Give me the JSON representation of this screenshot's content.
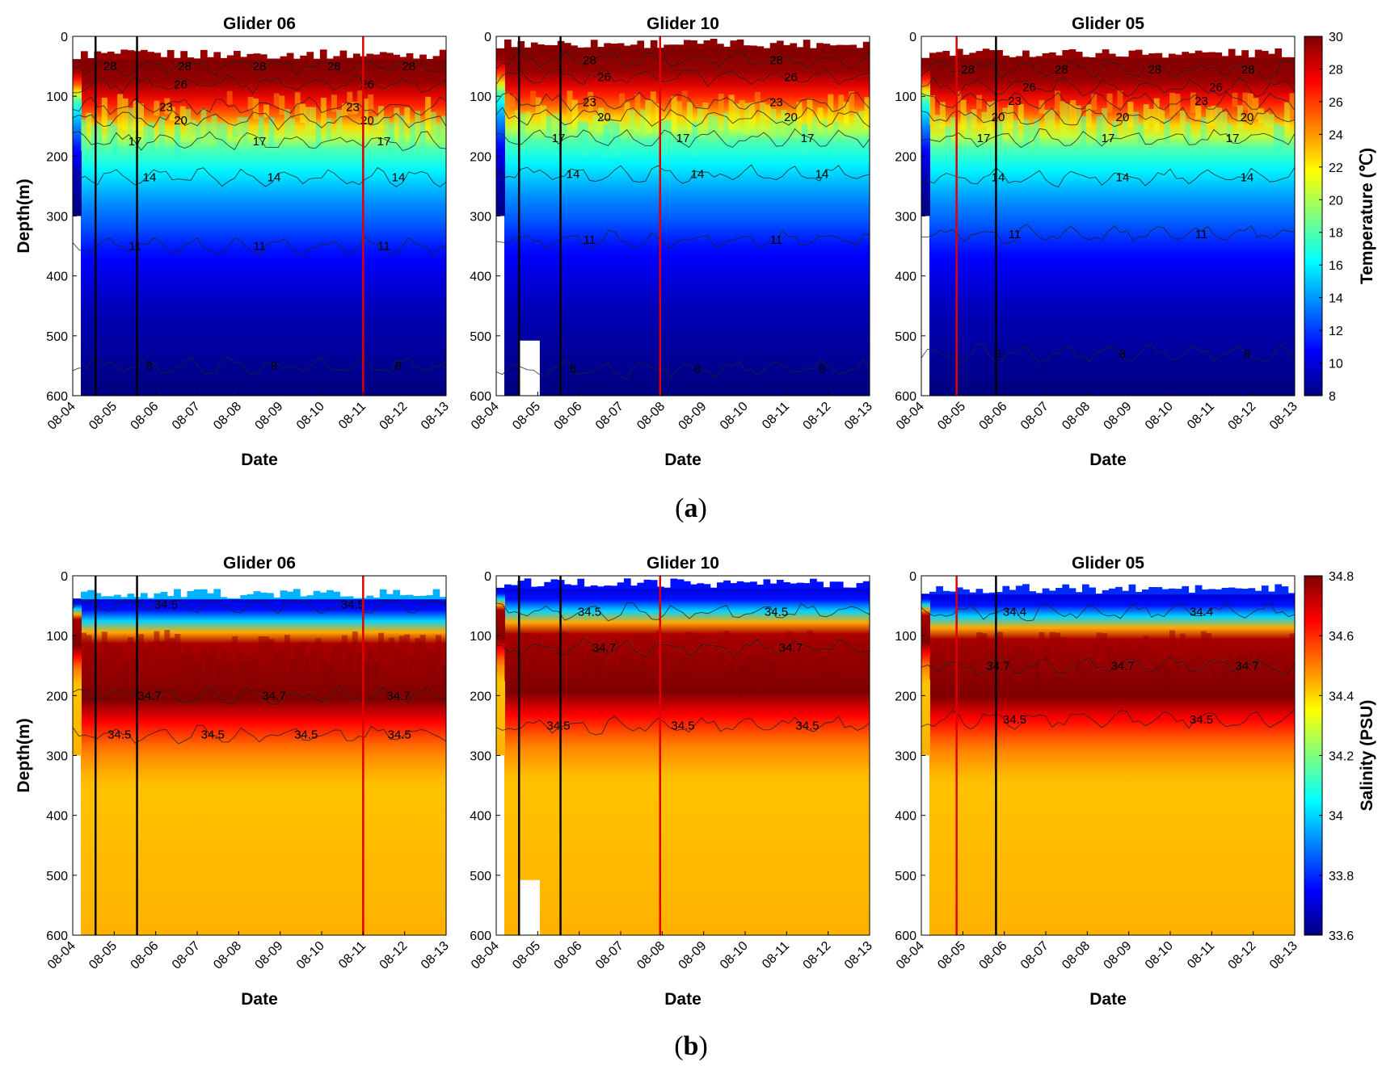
{
  "figure": {
    "panel_labels": [
      {
        "id": "a",
        "text": "(a)",
        "bold": "a"
      },
      {
        "id": "b",
        "text": "(b)",
        "bold": "b"
      }
    ]
  },
  "chart_data": [
    {
      "type": "heatmap",
      "panel": "a",
      "row": 0,
      "col": 0,
      "title": "Glider 06",
      "xlabel": "Date",
      "ylabel": "Depth(m)",
      "x_tick_labels": [
        "08-04",
        "08-05",
        "08-06",
        "08-07",
        "08-08",
        "08-09",
        "08-10",
        "08-11",
        "08-12",
        "08-13"
      ],
      "y_tick_labels": [
        "0",
        "100",
        "200",
        "300",
        "400",
        "500",
        "600"
      ],
      "ylim": [
        0,
        600
      ],
      "y_reversed": true,
      "variable": "temperature",
      "surface_depth": 38,
      "black_lines_day": [
        0.55,
        1.55
      ],
      "red_lines_day": [
        7.0
      ],
      "isolines": [
        {
          "value": 28,
          "depth": 50,
          "labels": [
            "28",
            "28",
            "28",
            "28",
            "28"
          ]
        },
        {
          "value": 26,
          "depth": 80,
          "labels": [
            "26",
            "26"
          ]
        },
        {
          "value": 23,
          "depth": 118,
          "labels": [
            "23",
            "23"
          ]
        },
        {
          "value": 20,
          "depth": 140,
          "labels": [
            "20",
            "20"
          ]
        },
        {
          "value": 17,
          "depth": 175,
          "labels": [
            "17",
            "17",
            "17"
          ]
        },
        {
          "value": 14,
          "depth": 235,
          "labels": [
            "14",
            "14",
            "14"
          ]
        },
        {
          "value": 11,
          "depth": 350,
          "labels": [
            "11",
            "11",
            "11"
          ]
        },
        {
          "value": 8,
          "depth": 550,
          "labels": [
            "8",
            "8",
            "8"
          ]
        }
      ]
    },
    {
      "type": "heatmap",
      "panel": "a",
      "row": 0,
      "col": 1,
      "title": "Glider 10",
      "xlabel": "Date",
      "ylabel": "",
      "x_tick_labels": [
        "08-04",
        "08-05",
        "08-06",
        "08-07",
        "08-08",
        "08-09",
        "08-10",
        "08-11",
        "08-12",
        "08-13"
      ],
      "y_tick_labels": [
        "0",
        "100",
        "200",
        "300",
        "400",
        "500",
        "600"
      ],
      "ylim": [
        0,
        600
      ],
      "y_reversed": true,
      "variable": "temperature",
      "surface_depth": 20,
      "black_lines_day": [
        0.55,
        1.55
      ],
      "red_lines_day": [
        3.95
      ],
      "gap": {
        "day_start": 0.55,
        "day_end": 1.05,
        "depth_top": 508
      },
      "isolines": [
        {
          "value": 28,
          "depth": 40,
          "labels": [
            "28",
            "28"
          ]
        },
        {
          "value": 26,
          "depth": 68,
          "labels": [
            "26",
            "26"
          ]
        },
        {
          "value": 23,
          "depth": 110,
          "labels": [
            "23",
            "23"
          ]
        },
        {
          "value": 20,
          "depth": 135,
          "labels": [
            "20",
            "20"
          ]
        },
        {
          "value": 17,
          "depth": 170,
          "labels": [
            "17",
            "17",
            "17"
          ]
        },
        {
          "value": 14,
          "depth": 230,
          "labels": [
            "14",
            "14",
            "14"
          ]
        },
        {
          "value": 11,
          "depth": 340,
          "labels": [
            "11",
            "11"
          ]
        },
        {
          "value": 8,
          "depth": 555,
          "labels": [
            "8",
            "8",
            "8"
          ]
        }
      ]
    },
    {
      "type": "heatmap",
      "panel": "a",
      "row": 0,
      "col": 2,
      "title": "Glider 05",
      "xlabel": "Date",
      "ylabel": "",
      "x_tick_labels": [
        "08-04",
        "08-05",
        "08-06",
        "08-07",
        "08-08",
        "08-09",
        "08-10",
        "08-11",
        "08-12",
        "08-13"
      ],
      "y_tick_labels": [
        "0",
        "100",
        "200",
        "300",
        "400",
        "500",
        "600"
      ],
      "ylim": [
        0,
        600
      ],
      "y_reversed": true,
      "variable": "temperature",
      "surface_depth": 36,
      "black_lines_day": [
        1.8
      ],
      "red_lines_day": [
        0.85
      ],
      "isolines": [
        {
          "value": 28,
          "depth": 55,
          "labels": [
            "28",
            "28",
            "28",
            "28"
          ]
        },
        {
          "value": 26,
          "depth": 85,
          "labels": [
            "26",
            "26"
          ]
        },
        {
          "value": 23,
          "depth": 108,
          "labels": [
            "23",
            "23"
          ]
        },
        {
          "value": 20,
          "depth": 135,
          "labels": [
            "20",
            "20",
            "20"
          ]
        },
        {
          "value": 17,
          "depth": 170,
          "labels": [
            "17",
            "17",
            "17"
          ]
        },
        {
          "value": 14,
          "depth": 235,
          "labels": [
            "14",
            "14",
            "14"
          ]
        },
        {
          "value": 11,
          "depth": 330,
          "labels": [
            "11",
            "11"
          ]
        },
        {
          "value": 8,
          "depth": 530,
          "labels": [
            "8",
            "8",
            "8"
          ]
        }
      ]
    },
    {
      "type": "heatmap",
      "panel": "b",
      "row": 1,
      "col": 0,
      "title": "Glider 06",
      "xlabel": "Date",
      "ylabel": "Depth(m)",
      "x_tick_labels": [
        "08-04",
        "08-05",
        "08-06",
        "08-07",
        "08-08",
        "08-09",
        "08-10",
        "08-11",
        "08-12",
        "08-13"
      ],
      "y_tick_labels": [
        "0",
        "100",
        "200",
        "300",
        "400",
        "500",
        "600"
      ],
      "ylim": [
        0,
        600
      ],
      "y_reversed": true,
      "variable": "salinity",
      "surface_depth": 38,
      "black_lines_day": [
        0.55,
        1.55
      ],
      "red_lines_day": [
        7.0
      ],
      "isolines": [
        {
          "value": 34.5,
          "depth": 48,
          "labels": [
            "34.5",
            "34.5"
          ]
        },
        {
          "value": 34.7,
          "depth": 200,
          "labels": [
            "34.7",
            "34.7",
            "34.7"
          ]
        },
        {
          "value": 34.5,
          "depth": 265,
          "labels": [
            "34.5",
            "34.5",
            "34.5",
            "34.5"
          ]
        }
      ]
    },
    {
      "type": "heatmap",
      "panel": "b",
      "row": 1,
      "col": 1,
      "title": "Glider 10",
      "xlabel": "Date",
      "ylabel": "",
      "x_tick_labels": [
        "08-04",
        "08-05",
        "08-06",
        "08-07",
        "08-08",
        "08-09",
        "08-10",
        "08-11",
        "08-12",
        "08-13"
      ],
      "y_tick_labels": [
        "0",
        "100",
        "200",
        "300",
        "400",
        "500",
        "600"
      ],
      "ylim": [
        0,
        600
      ],
      "y_reversed": true,
      "variable": "salinity",
      "surface_depth": 20,
      "black_lines_day": [
        0.55,
        1.55
      ],
      "red_lines_day": [
        3.95
      ],
      "gap": {
        "day_start": 0.55,
        "day_end": 1.05,
        "depth_top": 508
      },
      "isolines": [
        {
          "value": 34.5,
          "depth": 60,
          "labels": [
            "34.5",
            "34.5"
          ]
        },
        {
          "value": 34.7,
          "depth": 120,
          "labels": [
            "34.7",
            "34.7"
          ]
        },
        {
          "value": 34.5,
          "depth": 250,
          "labels": [
            "34.5",
            "34.5",
            "34.5"
          ]
        }
      ]
    },
    {
      "type": "heatmap",
      "panel": "b",
      "row": 1,
      "col": 2,
      "title": "Glider 05",
      "xlabel": "Date",
      "ylabel": "",
      "x_tick_labels": [
        "08-04",
        "08-05",
        "08-06",
        "08-07",
        "08-08",
        "08-09",
        "08-10",
        "08-11",
        "08-12",
        "08-13"
      ],
      "y_tick_labels": [
        "0",
        "100",
        "200",
        "300",
        "400",
        "500",
        "600"
      ],
      "ylim": [
        0,
        600
      ],
      "y_reversed": true,
      "variable": "salinity",
      "surface_depth": 30,
      "black_lines_day": [
        1.8
      ],
      "red_lines_day": [
        0.85
      ],
      "isolines": [
        {
          "value": 34.4,
          "depth": 60,
          "labels": [
            "34.4",
            "34.4"
          ]
        },
        {
          "value": 34.7,
          "depth": 150,
          "labels": [
            "34.7",
            "34.7",
            "34.7"
          ]
        },
        {
          "value": 34.5,
          "depth": 240,
          "labels": [
            "34.5",
            "34.5"
          ]
        }
      ]
    }
  ],
  "colorbars": [
    {
      "row": 0,
      "label": "Temperature (℃)",
      "min": 8,
      "max": 30,
      "tick_labels": [
        "8",
        "10",
        "12",
        "14",
        "16",
        "18",
        "20",
        "22",
        "24",
        "26",
        "28",
        "30"
      ],
      "colormap": [
        "#00007f",
        "#0000ff",
        "#007fff",
        "#00ffff",
        "#7fff7f",
        "#ffff00",
        "#ff7f00",
        "#ff0000",
        "#7f0000"
      ]
    },
    {
      "row": 1,
      "label": "Salinity (PSU)",
      "min": 33.6,
      "max": 34.8,
      "tick_labels": [
        "33.6",
        "33.8",
        "34",
        "34.2",
        "34.4",
        "34.6",
        "34.8"
      ],
      "colormap": [
        "#00007f",
        "#0000ff",
        "#007fff",
        "#00ffff",
        "#7fff7f",
        "#ffff00",
        "#ff7f00",
        "#ff0000",
        "#7f0000"
      ]
    }
  ]
}
